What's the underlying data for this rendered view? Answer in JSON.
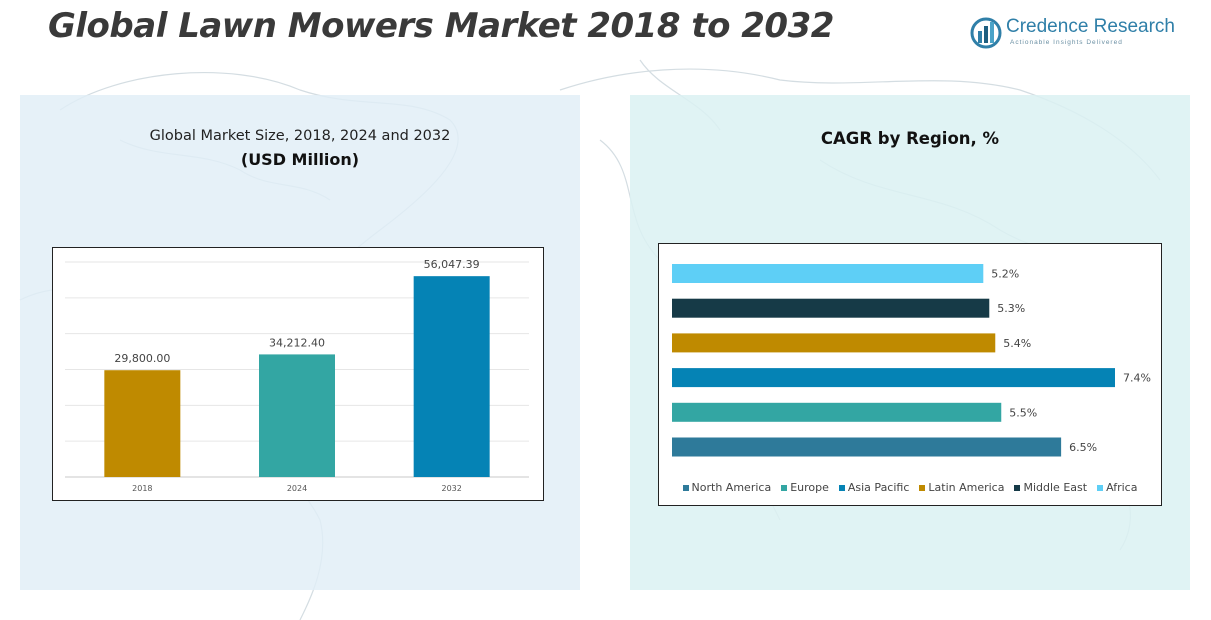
{
  "header": {
    "title": "Global Lawn Mowers Market 2018 to 2032",
    "logo_name": "Credence Research",
    "logo_tagline": "Actionable Insights Delivered",
    "logo_icon": "bar-chart-globe-icon"
  },
  "colors": {
    "gold": "#BF8A00",
    "teal": "#33A6A3",
    "blue": "#0583B5",
    "steel": "#2E7A9A",
    "navy": "#163A47",
    "sky": "#5ECFF6"
  },
  "chart_data": [
    {
      "type": "bar",
      "title": "Global Market Size, 2018, 2024 and 2032",
      "subtitle": "(USD Million)",
      "categories": [
        "2018",
        "2024",
        "2032"
      ],
      "values": [
        29800.0,
        34212.4,
        56047.39
      ],
      "data_labels": [
        "29,800.00",
        "34,212.40",
        "56,047.39"
      ],
      "bar_colors": [
        "#BF8A00",
        "#33A6A3",
        "#0583B5"
      ],
      "ylim": [
        0,
        60000
      ],
      "grid": true
    },
    {
      "type": "bar",
      "orientation": "horizontal",
      "title": "CAGR by Region, %",
      "categories": [
        "Africa",
        "Middle East",
        "Latin America",
        "Asia Pacific",
        "Europe",
        "North America"
      ],
      "values": [
        5.2,
        5.3,
        5.4,
        7.4,
        5.5,
        6.5
      ],
      "data_labels": [
        "5.2%",
        "5.3%",
        "5.4%",
        "7.4%",
        "5.5%",
        "6.5%"
      ],
      "bar_colors": [
        "#5ECFF6",
        "#163A47",
        "#BF8A00",
        "#0583B5",
        "#33A6A3",
        "#2E7A9A"
      ],
      "legend": [
        "North America",
        "Europe",
        "Asia Pacific",
        "Latin America",
        "Middle East",
        "Africa"
      ],
      "legend_colors": [
        "#2E7A9A",
        "#33A6A3",
        "#0583B5",
        "#BF8A00",
        "#163A47",
        "#5ECFF6"
      ],
      "legend_position": "bottom",
      "xlim": [
        0,
        7.4
      ],
      "grid": false
    }
  ]
}
